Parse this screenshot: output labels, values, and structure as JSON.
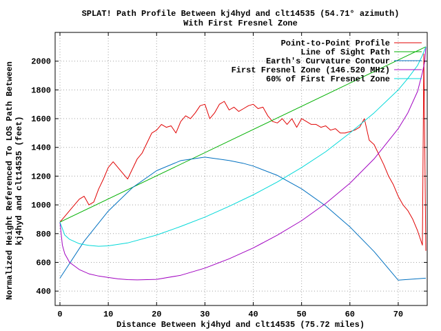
{
  "chart_data": {
    "type": "line",
    "title_line1": "SPLAT! Path Profile Between kj4hyd and clt14535 (54.71° azimuth)",
    "title_line2": "With First Fresnel Zone",
    "xlabel": "Distance Between kj4hyd and clt14535 (75.72 miles)",
    "ylabel_line1": "Normalized Height Referenced To LOS Path Between",
    "ylabel_line2": "kj4hyd and clt14535 (feet)",
    "xlim": [
      -1,
      76
    ],
    "ylim": [
      300,
      2200
    ],
    "xticks": [
      0,
      10,
      20,
      30,
      40,
      50,
      60,
      70
    ],
    "yticks": [
      400,
      600,
      800,
      1000,
      1200,
      1400,
      1600,
      1800,
      2000
    ],
    "grid": true,
    "legend_position": "top-right",
    "series": [
      {
        "name": "Point-to-Point Profile",
        "color": "#e00000",
        "x": [
          0,
          1,
          2,
          3,
          4,
          5,
          6,
          7,
          8,
          9,
          10,
          11,
          12,
          13,
          14,
          15,
          16,
          17,
          18,
          19,
          20,
          21,
          22,
          23,
          24,
          25,
          26,
          27,
          28,
          29,
          30,
          31,
          32,
          33,
          34,
          35,
          36,
          37,
          38,
          39,
          40,
          41,
          42,
          43,
          44,
          45,
          46,
          47,
          48,
          49,
          50,
          51,
          52,
          53,
          54,
          55,
          56,
          57,
          58,
          59,
          60,
          61,
          62,
          63,
          64,
          65,
          66,
          67,
          68,
          69,
          70,
          71,
          72,
          73,
          74,
          75,
          75.3,
          75.72
        ],
        "y": [
          880,
          920,
          960,
          1000,
          1040,
          1060,
          1000,
          1020,
          1110,
          1180,
          1260,
          1300,
          1260,
          1220,
          1180,
          1250,
          1320,
          1360,
          1430,
          1500,
          1520,
          1560,
          1540,
          1550,
          1500,
          1580,
          1620,
          1600,
          1640,
          1690,
          1700,
          1600,
          1640,
          1700,
          1720,
          1660,
          1680,
          1650,
          1670,
          1690,
          1700,
          1670,
          1680,
          1620,
          1580,
          1570,
          1600,
          1560,
          1600,
          1540,
          1600,
          1580,
          1560,
          1560,
          1540,
          1550,
          1520,
          1530,
          1500,
          1500,
          1510,
          1520,
          1540,
          1600,
          1450,
          1420,
          1350,
          1280,
          1200,
          1140,
          1060,
          1000,
          960,
          900,
          820,
          720,
          2050,
          680
        ]
      },
      {
        "name": "Line of Sight Path",
        "color": "#00b000",
        "x": [
          0,
          75.72
        ],
        "y": [
          880,
          2100
        ]
      },
      {
        "name": "Earth's Curvature Contour",
        "color": "#0070c0",
        "x": [
          0,
          5,
          10,
          15,
          20,
          25,
          30,
          35,
          37.86,
          40,
          45,
          50,
          55,
          60,
          65,
          70,
          75.72
        ],
        "y": [
          490,
          747,
          957,
          1120,
          1238,
          1308,
          1332,
          1309,
          1290,
          1270,
          1205,
          1112,
          993,
          847,
          675,
          476,
          490
        ]
      },
      {
        "name": "First Fresnel Zone (146.520 MHz)",
        "color": "#a000c0",
        "x": [
          0,
          0.5,
          1,
          2,
          4,
          6,
          8,
          10,
          12,
          14,
          16,
          20,
          25,
          30,
          35,
          40,
          45,
          50,
          55,
          60,
          65,
          70,
          72,
          74,
          75,
          75.5,
          75.72
        ],
        "y": [
          880,
          720,
          660,
          600,
          550,
          520,
          505,
          495,
          485,
          480,
          478,
          482,
          510,
          560,
          625,
          700,
          790,
          890,
          1010,
          1150,
          1320,
          1530,
          1640,
          1790,
          1920,
          2000,
          2100
        ]
      },
      {
        "name": "60% of First Fresnel Zone",
        "color": "#00d8d8",
        "x": [
          0,
          1,
          2,
          4,
          6,
          8,
          10,
          14,
          20,
          25,
          30,
          35,
          40,
          45,
          50,
          55,
          60,
          65,
          70,
          72,
          74,
          75,
          75.72
        ],
        "y": [
          880,
          790,
          760,
          730,
          718,
          712,
          715,
          735,
          790,
          850,
          915,
          990,
          1070,
          1160,
          1260,
          1370,
          1500,
          1640,
          1800,
          1880,
          1970,
          2040,
          2100
        ]
      }
    ]
  }
}
